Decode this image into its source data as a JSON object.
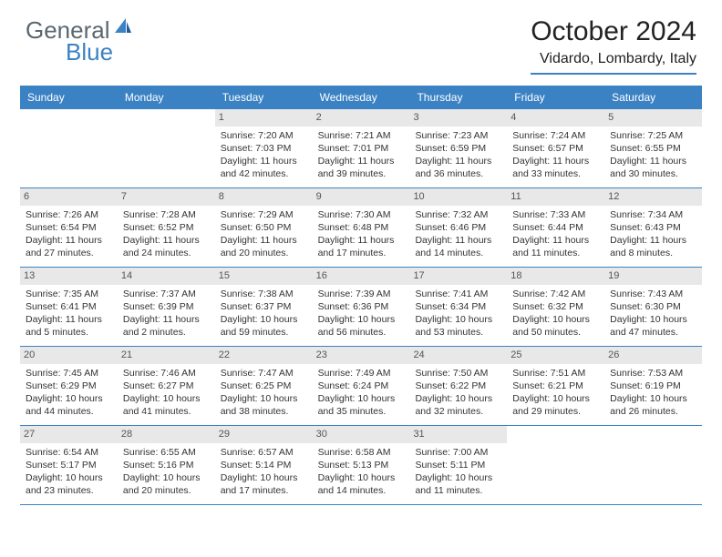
{
  "logo": {
    "text1": "General",
    "text2": "Blue"
  },
  "title": "October 2024",
  "location": "Vidardo, Lombardy, Italy",
  "colors": {
    "accent": "#3b82c4",
    "daynum_bg": "#e8e8e8",
    "text": "#333333",
    "logo_gray": "#5b6770"
  },
  "weekdays": [
    "Sunday",
    "Monday",
    "Tuesday",
    "Wednesday",
    "Thursday",
    "Friday",
    "Saturday"
  ],
  "weeks": [
    [
      null,
      null,
      {
        "n": "1",
        "sr": "7:20 AM",
        "ss": "7:03 PM",
        "dl": "11 hours and 42 minutes."
      },
      {
        "n": "2",
        "sr": "7:21 AM",
        "ss": "7:01 PM",
        "dl": "11 hours and 39 minutes."
      },
      {
        "n": "3",
        "sr": "7:23 AM",
        "ss": "6:59 PM",
        "dl": "11 hours and 36 minutes."
      },
      {
        "n": "4",
        "sr": "7:24 AM",
        "ss": "6:57 PM",
        "dl": "11 hours and 33 minutes."
      },
      {
        "n": "5",
        "sr": "7:25 AM",
        "ss": "6:55 PM",
        "dl": "11 hours and 30 minutes."
      }
    ],
    [
      {
        "n": "6",
        "sr": "7:26 AM",
        "ss": "6:54 PM",
        "dl": "11 hours and 27 minutes."
      },
      {
        "n": "7",
        "sr": "7:28 AM",
        "ss": "6:52 PM",
        "dl": "11 hours and 24 minutes."
      },
      {
        "n": "8",
        "sr": "7:29 AM",
        "ss": "6:50 PM",
        "dl": "11 hours and 20 minutes."
      },
      {
        "n": "9",
        "sr": "7:30 AM",
        "ss": "6:48 PM",
        "dl": "11 hours and 17 minutes."
      },
      {
        "n": "10",
        "sr": "7:32 AM",
        "ss": "6:46 PM",
        "dl": "11 hours and 14 minutes."
      },
      {
        "n": "11",
        "sr": "7:33 AM",
        "ss": "6:44 PM",
        "dl": "11 hours and 11 minutes."
      },
      {
        "n": "12",
        "sr": "7:34 AM",
        "ss": "6:43 PM",
        "dl": "11 hours and 8 minutes."
      }
    ],
    [
      {
        "n": "13",
        "sr": "7:35 AM",
        "ss": "6:41 PM",
        "dl": "11 hours and 5 minutes."
      },
      {
        "n": "14",
        "sr": "7:37 AM",
        "ss": "6:39 PM",
        "dl": "11 hours and 2 minutes."
      },
      {
        "n": "15",
        "sr": "7:38 AM",
        "ss": "6:37 PM",
        "dl": "10 hours and 59 minutes."
      },
      {
        "n": "16",
        "sr": "7:39 AM",
        "ss": "6:36 PM",
        "dl": "10 hours and 56 minutes."
      },
      {
        "n": "17",
        "sr": "7:41 AM",
        "ss": "6:34 PM",
        "dl": "10 hours and 53 minutes."
      },
      {
        "n": "18",
        "sr": "7:42 AM",
        "ss": "6:32 PM",
        "dl": "10 hours and 50 minutes."
      },
      {
        "n": "19",
        "sr": "7:43 AM",
        "ss": "6:30 PM",
        "dl": "10 hours and 47 minutes."
      }
    ],
    [
      {
        "n": "20",
        "sr": "7:45 AM",
        "ss": "6:29 PM",
        "dl": "10 hours and 44 minutes."
      },
      {
        "n": "21",
        "sr": "7:46 AM",
        "ss": "6:27 PM",
        "dl": "10 hours and 41 minutes."
      },
      {
        "n": "22",
        "sr": "7:47 AM",
        "ss": "6:25 PM",
        "dl": "10 hours and 38 minutes."
      },
      {
        "n": "23",
        "sr": "7:49 AM",
        "ss": "6:24 PM",
        "dl": "10 hours and 35 minutes."
      },
      {
        "n": "24",
        "sr": "7:50 AM",
        "ss": "6:22 PM",
        "dl": "10 hours and 32 minutes."
      },
      {
        "n": "25",
        "sr": "7:51 AM",
        "ss": "6:21 PM",
        "dl": "10 hours and 29 minutes."
      },
      {
        "n": "26",
        "sr": "7:53 AM",
        "ss": "6:19 PM",
        "dl": "10 hours and 26 minutes."
      }
    ],
    [
      {
        "n": "27",
        "sr": "6:54 AM",
        "ss": "5:17 PM",
        "dl": "10 hours and 23 minutes."
      },
      {
        "n": "28",
        "sr": "6:55 AM",
        "ss": "5:16 PM",
        "dl": "10 hours and 20 minutes."
      },
      {
        "n": "29",
        "sr": "6:57 AM",
        "ss": "5:14 PM",
        "dl": "10 hours and 17 minutes."
      },
      {
        "n": "30",
        "sr": "6:58 AM",
        "ss": "5:13 PM",
        "dl": "10 hours and 14 minutes."
      },
      {
        "n": "31",
        "sr": "7:00 AM",
        "ss": "5:11 PM",
        "dl": "10 hours and 11 minutes."
      },
      null,
      null
    ]
  ],
  "labels": {
    "sunrise": "Sunrise:",
    "sunset": "Sunset:",
    "daylight": "Daylight:"
  }
}
